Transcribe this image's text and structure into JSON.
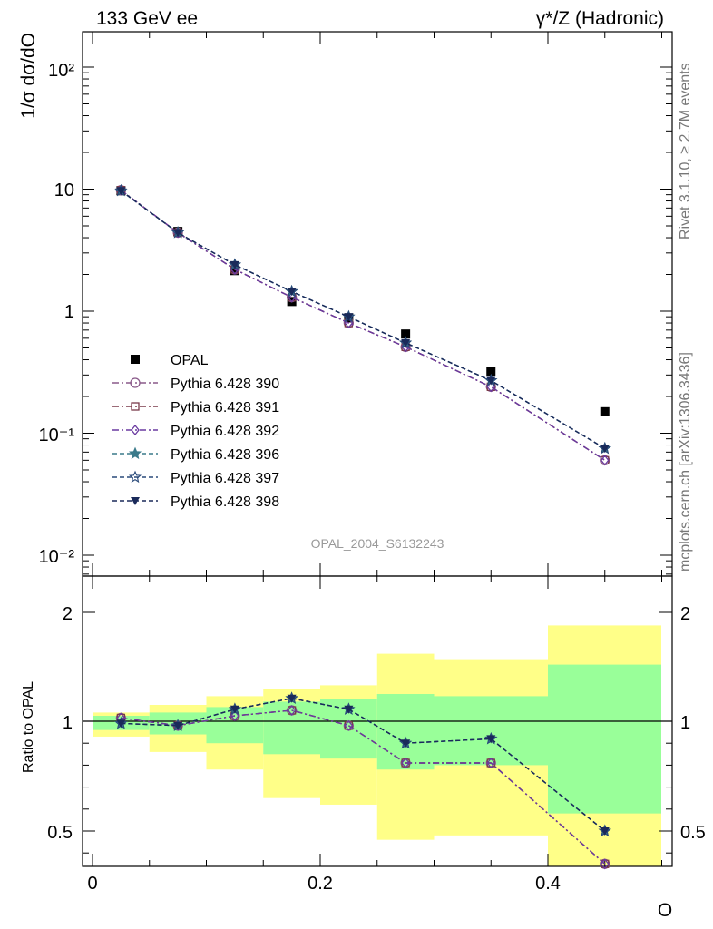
{
  "header": {
    "left_title": "133 GeV ee",
    "right_title": "γ*/Z (Hadronic)"
  },
  "side_labels": {
    "rivet": "Rivet 3.1.10, ≥ 2.7M events",
    "mcplots": "mcplots.cern.ch [arXiv:1306.3436]"
  },
  "watermark": "OPAL_2004_S6132243",
  "chart_data": [
    {
      "type": "scatter",
      "panel": "main",
      "ylabel": "1/σ dσ/dO",
      "xlabel": "O",
      "yscale": "log",
      "ylim": [
        0.007,
        200
      ],
      "xlim": [
        -0.01,
        0.51
      ],
      "y_tick_labels": [
        "10⁻²",
        "10⁻¹",
        "1",
        "10",
        "10²"
      ],
      "legend_position": "left-middle",
      "x": [
        0.025,
        0.075,
        0.125,
        0.175,
        0.225,
        0.275,
        0.35,
        0.45
      ],
      "series": [
        {
          "name": "OPAL",
          "color": "#000000",
          "marker": "square-filled",
          "values": [
            9.7,
            4.5,
            2.15,
            1.2,
            0.88,
            0.65,
            0.32,
            0.15
          ]
        },
        {
          "name": "Pythia 6.428 390",
          "color": "#8a5a8a",
          "marker": "circle-open",
          "dash": "dashdot",
          "values": [
            9.8,
            4.4,
            2.2,
            1.3,
            0.8,
            0.51,
            0.24,
            0.06
          ]
        },
        {
          "name": "Pythia 6.428 391",
          "color": "#7a3a4a",
          "marker": "square-open",
          "dash": "dashdot",
          "values": [
            9.8,
            4.4,
            2.2,
            1.3,
            0.8,
            0.51,
            0.24,
            0.06
          ]
        },
        {
          "name": "Pythia 6.428 392",
          "color": "#6a3aa0",
          "marker": "diamond-open",
          "dash": "dashdot",
          "values": [
            9.8,
            4.4,
            2.2,
            1.3,
            0.8,
            0.51,
            0.24,
            0.06
          ]
        },
        {
          "name": "Pythia 6.428 396",
          "color": "#3a7a8a",
          "marker": "star-filled",
          "dash": "dash",
          "values": [
            9.7,
            4.4,
            2.4,
            1.45,
            0.9,
            0.55,
            0.27,
            0.075
          ]
        },
        {
          "name": "Pythia 6.428 397",
          "color": "#2a4a7a",
          "marker": "star-open",
          "dash": "dash",
          "values": [
            9.7,
            4.4,
            2.4,
            1.45,
            0.9,
            0.55,
            0.27,
            0.075
          ]
        },
        {
          "name": "Pythia 6.428 398",
          "color": "#1a2a5a",
          "marker": "triangle-down-filled",
          "dash": "dash",
          "values": [
            9.7,
            4.4,
            2.4,
            1.45,
            0.9,
            0.55,
            0.27,
            0.075
          ]
        }
      ]
    },
    {
      "type": "line",
      "panel": "ratio",
      "ylabel": "Ratio to OPAL",
      "xlabel": "O",
      "ylim": [
        0.35,
        2.3
      ],
      "y_tick_labels": [
        "0.5",
        "1",
        "2"
      ],
      "x_tick_labels": [
        "0",
        "0.2",
        "0.4"
      ],
      "x_ticks": [
        0,
        0.2,
        0.4
      ],
      "bins": [
        [
          0,
          0.05
        ],
        [
          0.05,
          0.1
        ],
        [
          0.1,
          0.15
        ],
        [
          0.15,
          0.2
        ],
        [
          0.2,
          0.25
        ],
        [
          0.25,
          0.3
        ],
        [
          0.3,
          0.4
        ],
        [
          0.4,
          0.5
        ]
      ],
      "band_yellow": [
        [
          0.93,
          1.08
        ],
        [
          0.86,
          1.15
        ],
        [
          0.78,
          1.23
        ],
        [
          0.65,
          1.3
        ],
        [
          0.62,
          1.33
        ],
        [
          0.46,
          1.62
        ],
        [
          0.48,
          1.57
        ],
        [
          0.3,
          1.88
        ]
      ],
      "band_green": [
        [
          0.96,
          1.05
        ],
        [
          0.94,
          1.08
        ],
        [
          0.9,
          1.13
        ],
        [
          0.85,
          1.18
        ],
        [
          0.83,
          1.2
        ],
        [
          0.78,
          1.25
        ],
        [
          0.8,
          1.23
        ],
        [
          0.58,
          1.52
        ]
      ],
      "x": [
        0.025,
        0.075,
        0.125,
        0.175,
        0.225,
        0.275,
        0.35,
        0.45
      ],
      "series": [
        {
          "name": "Pythia 6.428 390",
          "color": "#8a5a8a",
          "marker": "circle-open",
          "dash": "dashdot",
          "values": [
            1.03,
            0.98,
            1.05,
            1.1,
            0.98,
            0.81,
            0.81,
            0.35
          ]
        },
        {
          "name": "Pythia 6.428 391",
          "color": "#7a3a4a",
          "marker": "square-open",
          "dash": "dashdot",
          "values": [
            1.03,
            0.98,
            1.05,
            1.1,
            0.98,
            0.81,
            0.81,
            0.35
          ]
        },
        {
          "name": "Pythia 6.428 392",
          "color": "#6a3aa0",
          "marker": "diamond-open",
          "dash": "dashdot",
          "values": [
            1.03,
            0.98,
            1.05,
            1.1,
            0.98,
            0.81,
            0.81,
            0.35
          ]
        },
        {
          "name": "Pythia 6.428 396",
          "color": "#3a7a8a",
          "marker": "star-filled",
          "dash": "dash",
          "values": [
            0.99,
            0.98,
            1.11,
            1.21,
            1.11,
            0.9,
            0.92,
            0.5
          ]
        },
        {
          "name": "Pythia 6.428 397",
          "color": "#2a4a7a",
          "marker": "star-open",
          "dash": "dash",
          "values": [
            0.99,
            0.98,
            1.11,
            1.21,
            1.11,
            0.9,
            0.92,
            0.5
          ]
        },
        {
          "name": "Pythia 6.428 398",
          "color": "#1a2a5a",
          "marker": "triangle-down-filled",
          "dash": "dash",
          "values": [
            0.99,
            0.98,
            1.11,
            1.21,
            1.11,
            0.9,
            0.92,
            0.5
          ]
        }
      ]
    }
  ],
  "colors": {
    "yellow_band": "#ffff88",
    "green_band": "#99ff99"
  }
}
